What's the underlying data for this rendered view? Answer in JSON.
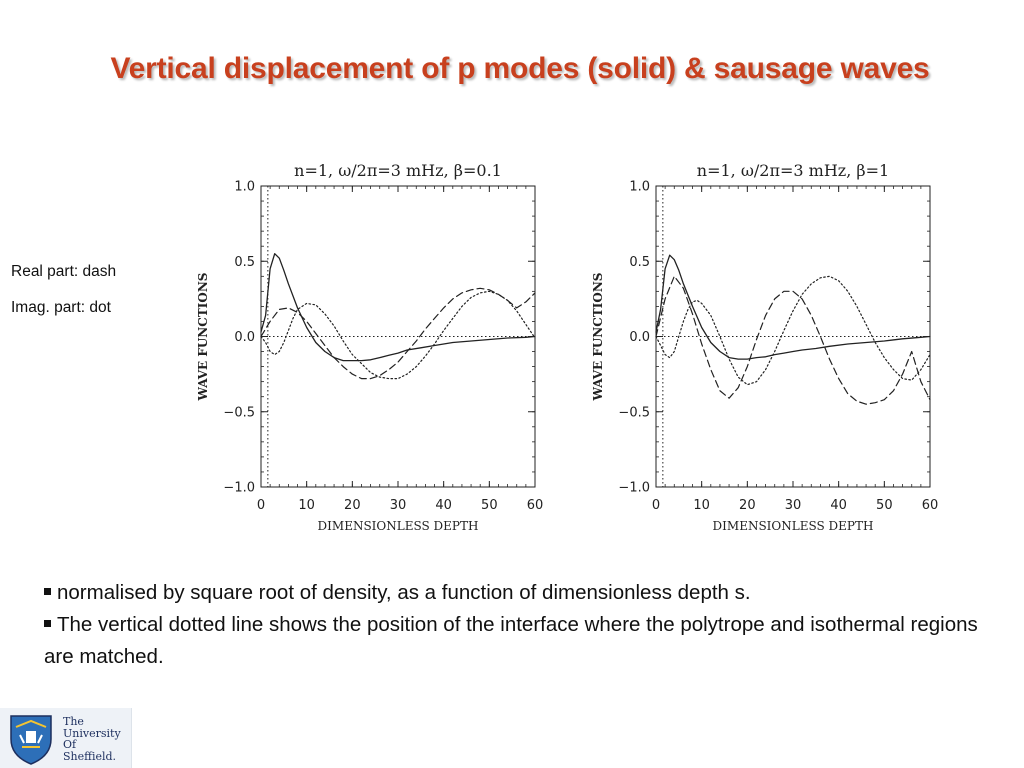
{
  "slide": {
    "title": "Vertical displacement of p modes (solid) & sausage waves",
    "notes": {
      "real": "Real part: dash",
      "imag": "Imag. part: dot"
    },
    "bullets": [
      "normalised by square root of density, as a function of dimensionless depth s.",
      "The vertical dotted line shows the position of the interface where the polytrope and isothermal regions are matched."
    ],
    "logo": {
      "lines": [
        "The",
        "University",
        "Of",
        "Sheffield."
      ]
    },
    "colors": {
      "title": "#c8401e",
      "text": "#111111"
    }
  },
  "chart_data": [
    {
      "type": "line",
      "title": "n=1,  ω/2π=3  mHz,  β=0.1",
      "xlabel": "DIMENSIONLESS  DEPTH",
      "ylabel": "WAVE  FUNCTIONS",
      "xlim": [
        0,
        60
      ],
      "ylim": [
        -1.0,
        1.0
      ],
      "xticks": [
        "0",
        "10",
        "20",
        "30",
        "40",
        "50",
        "60"
      ],
      "yticks": [
        "1.0",
        "0.5",
        "0.0",
        "−0.5",
        "−1.0"
      ],
      "interface_x": 1.5,
      "zero_line": true,
      "series": [
        {
          "style": "solid",
          "x": [
            0,
            1,
            2,
            3,
            4,
            5,
            6,
            8,
            10,
            12,
            14,
            16,
            18,
            20,
            22,
            24,
            26,
            28,
            30,
            32,
            35,
            38,
            42,
            46,
            50,
            54,
            58,
            60
          ],
          "y": [
            0.03,
            0.14,
            0.45,
            0.55,
            0.52,
            0.44,
            0.35,
            0.19,
            0.06,
            -0.04,
            -0.1,
            -0.14,
            -0.16,
            -0.16,
            -0.16,
            -0.155,
            -0.14,
            -0.125,
            -0.11,
            -0.09,
            -0.075,
            -0.06,
            -0.04,
            -0.03,
            -0.02,
            -0.01,
            -0.005,
            0.0
          ]
        },
        {
          "style": "dash",
          "x": [
            0,
            2,
            4,
            6,
            8,
            10,
            12,
            14,
            16,
            18,
            20,
            22,
            24,
            26,
            28,
            30,
            32,
            34,
            36,
            38,
            40,
            42,
            44,
            46,
            48,
            50,
            52,
            54,
            56,
            58,
            60
          ],
          "y": [
            0.0,
            0.1,
            0.18,
            0.19,
            0.16,
            0.1,
            0.02,
            -0.06,
            -0.14,
            -0.2,
            -0.25,
            -0.28,
            -0.28,
            -0.26,
            -0.22,
            -0.17,
            -0.1,
            -0.03,
            0.05,
            0.12,
            0.19,
            0.25,
            0.29,
            0.31,
            0.32,
            0.31,
            0.28,
            0.24,
            0.19,
            0.23,
            0.29
          ]
        },
        {
          "style": "dot",
          "x": [
            0,
            1,
            2,
            3,
            4,
            5,
            6,
            7,
            8,
            10,
            12,
            14,
            16,
            18,
            20,
            22,
            24,
            26,
            28,
            30,
            32,
            34,
            36,
            38,
            40,
            42,
            44,
            46,
            48,
            50,
            52,
            54,
            56,
            58,
            60
          ],
          "y": [
            0.0,
            -0.04,
            -0.1,
            -0.12,
            -0.1,
            -0.04,
            0.04,
            0.12,
            0.18,
            0.22,
            0.21,
            0.15,
            0.07,
            -0.03,
            -0.12,
            -0.18,
            -0.24,
            -0.27,
            -0.28,
            -0.28,
            -0.25,
            -0.2,
            -0.13,
            -0.05,
            0.04,
            0.12,
            0.2,
            0.26,
            0.29,
            0.3,
            0.28,
            0.24,
            0.17,
            0.08,
            -0.01
          ]
        }
      ]
    },
    {
      "type": "line",
      "title": "n=1,  ω/2π=3  mHz,  β=1",
      "xlabel": "DIMENSIONLESS  DEPTH",
      "ylabel": "WAVE  FUNCTIONS",
      "xlim": [
        0,
        60
      ],
      "ylim": [
        -1.0,
        1.0
      ],
      "xticks": [
        "0",
        "10",
        "20",
        "30",
        "40",
        "50",
        "60"
      ],
      "yticks": [
        "1.0",
        "0.5",
        "0.0",
        "−0.5",
        "−1.0"
      ],
      "interface_x": 1.5,
      "zero_line": true,
      "series": [
        {
          "style": "solid",
          "x": [
            0,
            1,
            2,
            3,
            4,
            5,
            6,
            8,
            10,
            12,
            14,
            16,
            18,
            20,
            22,
            24,
            26,
            28,
            30,
            32,
            35,
            38,
            42,
            46,
            50,
            54,
            58,
            60
          ],
          "y": [
            0.03,
            0.18,
            0.45,
            0.54,
            0.51,
            0.44,
            0.35,
            0.2,
            0.06,
            -0.04,
            -0.1,
            -0.14,
            -0.15,
            -0.15,
            -0.14,
            -0.135,
            -0.12,
            -0.11,
            -0.1,
            -0.09,
            -0.08,
            -0.065,
            -0.05,
            -0.04,
            -0.03,
            -0.015,
            -0.005,
            0.0
          ]
        },
        {
          "style": "dash",
          "x": [
            0,
            2,
            4,
            6,
            8,
            10,
            12,
            14,
            16,
            18,
            20,
            22,
            24,
            26,
            28,
            30,
            32,
            34,
            36,
            38,
            40,
            42,
            44,
            46,
            48,
            50,
            52,
            54,
            56,
            58,
            60
          ],
          "y": [
            0.0,
            0.25,
            0.4,
            0.32,
            0.15,
            -0.05,
            -0.22,
            -0.36,
            -0.41,
            -0.34,
            -0.2,
            -0.02,
            0.14,
            0.25,
            0.3,
            0.3,
            0.25,
            0.14,
            0.0,
            -0.15,
            -0.28,
            -0.38,
            -0.43,
            -0.45,
            -0.44,
            -0.42,
            -0.36,
            -0.25,
            -0.1,
            -0.3,
            -0.42
          ]
        },
        {
          "style": "dot",
          "x": [
            0,
            1,
            2,
            3,
            4,
            5,
            6,
            7,
            8,
            9,
            10,
            12,
            14,
            16,
            18,
            20,
            22,
            24,
            26,
            28,
            30,
            32,
            34,
            36,
            38,
            40,
            42,
            44,
            46,
            48,
            50,
            52,
            54,
            56,
            58,
            60
          ],
          "y": [
            0.0,
            -0.06,
            -0.12,
            -0.14,
            -0.1,
            0.0,
            0.1,
            0.18,
            0.23,
            0.24,
            0.22,
            0.14,
            0.0,
            -0.15,
            -0.27,
            -0.32,
            -0.3,
            -0.22,
            -0.1,
            0.04,
            0.17,
            0.28,
            0.35,
            0.39,
            0.4,
            0.37,
            0.3,
            0.2,
            0.08,
            -0.04,
            -0.14,
            -0.22,
            -0.28,
            -0.29,
            -0.22,
            -0.12
          ]
        }
      ]
    }
  ]
}
